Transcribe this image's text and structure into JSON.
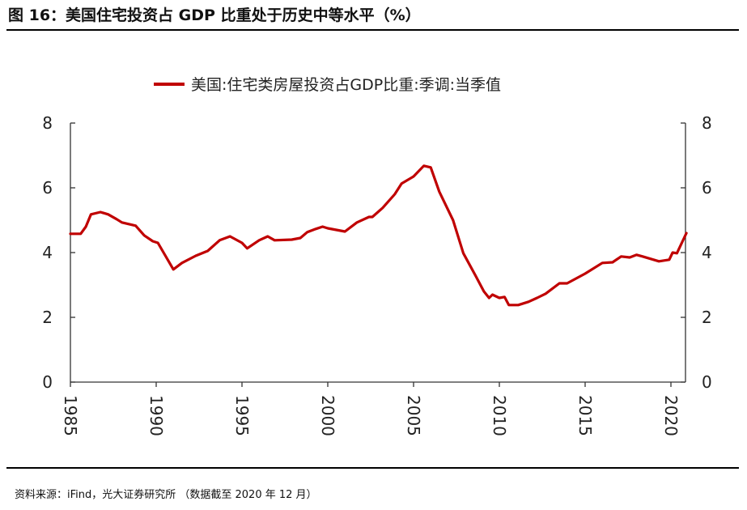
{
  "header": {
    "title": "图 16：美国住宅投资占 GDP 比重处于历史中等水平（%）"
  },
  "footer": {
    "source": "资料来源：iFind，光大证券研究所   （数据截至 2020 年 12 月）"
  },
  "chart_data": {
    "type": "line",
    "title": "",
    "xlabel": "",
    "ylabel": "",
    "xlim": [
      1985,
      2020.9
    ],
    "ylim": [
      0,
      8
    ],
    "x_ticks": [
      "1985",
      "1990",
      "1995",
      "2000",
      "2005",
      "2010",
      "2015",
      "2020"
    ],
    "y_ticks": [
      "0",
      "2",
      "4",
      "6",
      "8"
    ],
    "y2_ticks": [
      "0",
      "2",
      "4",
      "6",
      "8"
    ],
    "grid": false,
    "legend_position": "top",
    "series": [
      {
        "name": "美国:住宅类房屋投资占GDP比重:季调:当季值",
        "color": "#C00000",
        "x": [
          1985.0,
          1985.6,
          1985.9,
          1986.2,
          1986.75,
          1987.2,
          1987.7,
          1988.0,
          1988.8,
          1989.3,
          1989.8,
          1990.1,
          1991.0,
          1991.5,
          1992.3,
          1993.0,
          1993.7,
          1994.3,
          1995.0,
          1995.3,
          1996.0,
          1996.5,
          1996.9,
          1997.9,
          1998.4,
          1998.8,
          1999.3,
          1999.7,
          2000.0,
          2000.5,
          2001.0,
          2001.7,
          2002.4,
          2002.6,
          2003.2,
          2003.9,
          2004.3,
          2005.0,
          2005.6,
          2006.0,
          2006.5,
          2007.3,
          2007.9,
          2008.6,
          2009.1,
          2009.4,
          2009.6,
          2010.0,
          2010.3,
          2010.55,
          2011.1,
          2011.7,
          2012.2,
          2012.7,
          2013.5,
          2013.95,
          2015.0,
          2016.0,
          2016.6,
          2017.1,
          2017.6,
          2018.0,
          2018.35,
          2019.3,
          2019.9,
          2020.1,
          2020.35,
          2020.9
        ],
        "values": [
          4.58,
          4.58,
          4.8,
          5.18,
          5.25,
          5.18,
          5.03,
          4.93,
          4.83,
          4.53,
          4.35,
          4.3,
          3.48,
          3.68,
          3.9,
          4.05,
          4.38,
          4.5,
          4.3,
          4.13,
          4.38,
          4.5,
          4.38,
          4.4,
          4.45,
          4.63,
          4.73,
          4.8,
          4.75,
          4.7,
          4.65,
          4.93,
          5.1,
          5.1,
          5.38,
          5.8,
          6.13,
          6.35,
          6.68,
          6.63,
          5.88,
          5.0,
          3.98,
          3.3,
          2.8,
          2.6,
          2.7,
          2.6,
          2.63,
          2.38,
          2.38,
          2.48,
          2.6,
          2.73,
          3.05,
          3.05,
          3.35,
          3.68,
          3.7,
          3.88,
          3.85,
          3.93,
          3.88,
          3.73,
          3.78,
          4.0,
          3.98,
          4.6
        ]
      }
    ]
  }
}
